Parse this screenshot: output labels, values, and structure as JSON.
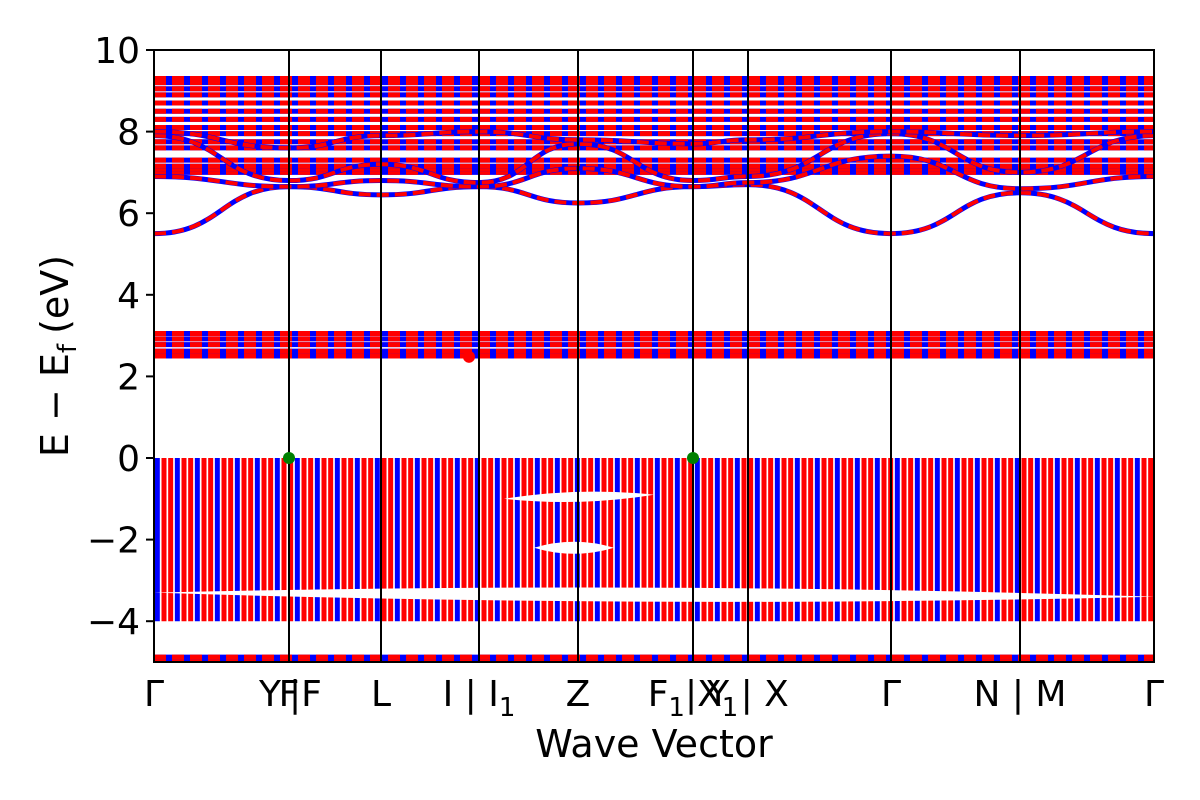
{
  "chart_data": {
    "type": "line",
    "title": "",
    "xlabel": "Wave Vector",
    "ylabel_parts": {
      "main": "E − E",
      "sub": "f",
      "unit": "(eV)"
    },
    "ylim": [
      -5,
      10
    ],
    "yticks": [
      -4,
      -2,
      0,
      2,
      4,
      6,
      8,
      10
    ],
    "ytick_labels": [
      "−4",
      "−2",
      "0",
      "2",
      "4",
      "6",
      "8",
      "10"
    ],
    "kpath": {
      "vertical_lines": [
        0,
        0.135,
        0.227,
        0.325,
        0.424,
        0.539,
        0.594,
        0.737,
        0.866,
        1.0
      ],
      "labels": [
        {
          "x": 0.0,
          "text": "Γ",
          "anchor": "middle"
        },
        {
          "x": 0.127,
          "text": "Y",
          "anchor": "end"
        },
        {
          "x": 0.135,
          "text": "F",
          "anchor": "middle"
        },
        {
          "x": 0.135,
          "text": "|F",
          "anchor": "start"
        },
        {
          "x": 0.227,
          "text": "L",
          "anchor": "middle"
        },
        {
          "x": 0.325,
          "text": "I | I",
          "sub": "1",
          "anchor": "middle"
        },
        {
          "x": 0.424,
          "text": "Z",
          "anchor": "middle"
        },
        {
          "x": 0.539,
          "text": "F",
          "sub": "1",
          "suffix": "|X",
          "sub2": "1",
          "anchor": "middle"
        },
        {
          "x": 0.594,
          "text": "Y | X",
          "anchor": "middle"
        },
        {
          "x": 0.737,
          "text": "Γ",
          "anchor": "middle"
        },
        {
          "x": 0.866,
          "text": "N | M",
          "anchor": "middle"
        },
        {
          "x": 1.0,
          "text": "Γ",
          "anchor": "middle"
        }
      ]
    },
    "series": [
      {
        "color": "#0000ff"
      },
      {
        "color": "#ff0000",
        "dashed": true
      }
    ],
    "flat_bands": [
      -4.95,
      -4.88,
      2.5,
      2.62,
      2.78,
      2.92,
      3.05,
      7.0,
      7.08,
      7.15,
      7.3,
      7.6,
      7.75,
      7.95,
      8.1,
      8.3,
      8.5,
      8.7,
      8.9,
      9.05,
      9.2,
      9.3
    ],
    "dispersive_bands": [
      {
        "kpts": [
          0,
          0.135,
          0.227,
          0.325,
          0.424,
          0.539,
          0.594,
          0.737,
          0.866,
          1.0
        ],
        "e": [
          5.5,
          6.65,
          6.45,
          6.65,
          6.25,
          6.65,
          6.7,
          5.5,
          6.5,
          5.5
        ]
      },
      {
        "kpts": [
          0,
          0.135,
          0.227,
          0.325,
          0.424,
          0.539,
          0.594,
          0.737,
          0.866,
          1.0
        ],
        "e": [
          6.9,
          6.65,
          6.8,
          6.65,
          7.1,
          6.65,
          6.75,
          7.4,
          6.6,
          6.9
        ]
      },
      {
        "kpts": [
          0,
          0.135,
          0.227,
          0.325,
          0.424,
          0.539,
          0.594,
          0.737,
          0.866,
          1.0
        ],
        "e": [
          7.9,
          6.8,
          7.2,
          6.75,
          7.7,
          6.8,
          6.9,
          7.95,
          7.0,
          7.9
        ]
      },
      {
        "kpts": [
          0,
          0.135,
          0.227,
          0.325,
          0.424,
          0.539,
          0.594,
          0.737,
          0.866,
          1.0
        ],
        "e": [
          8.0,
          7.6,
          7.9,
          8.0,
          7.8,
          7.7,
          7.8,
          8.0,
          7.9,
          8.0
        ]
      }
    ],
    "valence_block": [
      -4.0,
      0.0
    ],
    "valence_gaps": [
      {
        "kpts": [
          0.35,
          0.5
        ],
        "e": [
          -1.0,
          -0.9
        ]
      },
      {
        "kpts": [
          0.38,
          0.46
        ],
        "e": [
          -2.2,
          -2.2
        ]
      },
      {
        "kpts": [
          0.0,
          1.0
        ],
        "e": [
          -3.3,
          -3.4
        ]
      }
    ],
    "markers": [
      {
        "x": 0.135,
        "y": 0.0,
        "color": "#008000"
      },
      {
        "x": 0.539,
        "y": 0.0,
        "color": "#008000"
      },
      {
        "x": 0.315,
        "y": 2.48,
        "color": "#ff0000"
      }
    ],
    "grid": false,
    "legend": "none"
  }
}
